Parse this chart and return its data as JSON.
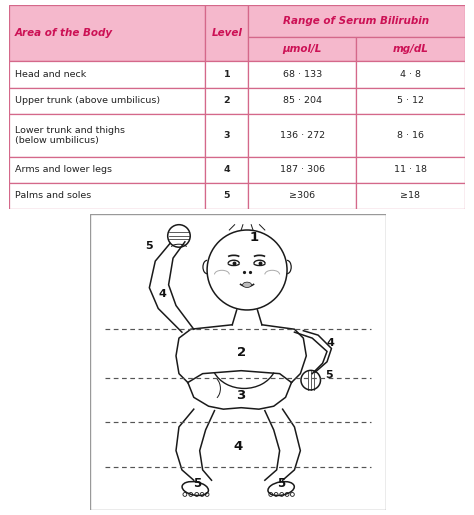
{
  "title": "Range of Serum Bilirubin",
  "col_headers": [
    "Area of the Body",
    "Level",
    "μmol/L",
    "mg/dL"
  ],
  "rows": [
    [
      "Head and neck",
      "1",
      "68 · 133",
      "4 · 8"
    ],
    [
      "Upper trunk (above umbilicus)",
      "2",
      "85 · 204",
      "5 · 12"
    ],
    [
      "Lower trunk and thighs\n(below umbilicus)",
      "3",
      "136 · 272",
      "8 · 16"
    ],
    [
      "Arms and lower legs",
      "4",
      "187 · 306",
      "11 · 18"
    ],
    [
      "Palms and soles",
      "5",
      "≥306",
      "≥18"
    ]
  ],
  "header_bg": "#F5B8CC",
  "subheader_bg": "#F5B8CC",
  "row_bg": "#FFFFFF",
  "border_color": "#D4688A",
  "header_text_color": "#CC1155",
  "body_text_color": "#222222",
  "figure_bg": "#FFFFFF"
}
